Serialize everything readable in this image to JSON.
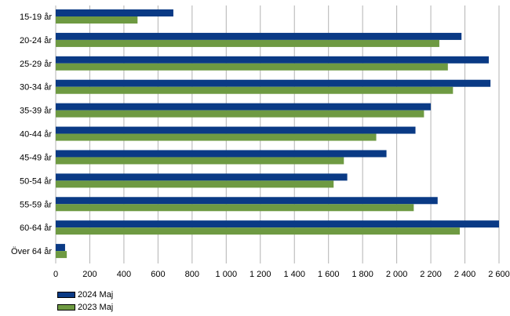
{
  "chart_data": {
    "type": "bar",
    "orientation": "horizontal",
    "categories": [
      "15-19 år",
      "20-24 år",
      "25-29 år",
      "30-34 år",
      "35-39 år",
      "40-44 år",
      "45-49 år",
      "50-54 år",
      "55-59 år",
      "60-64 år",
      "Över 64 år"
    ],
    "series": [
      {
        "name": "2024 Maj",
        "color": "#0a3a85",
        "values": [
          690,
          2380,
          2540,
          2550,
          2200,
          2110,
          1940,
          1710,
          2240,
          2600,
          55
        ]
      },
      {
        "name": "2023 Maj",
        "color": "#6e9a42",
        "values": [
          480,
          2250,
          2300,
          2330,
          2160,
          1880,
          1690,
          1630,
          2100,
          2370,
          65
        ]
      }
    ],
    "xlim": [
      0,
      2600
    ],
    "xticks": [
      0,
      200,
      400,
      600,
      800,
      1000,
      1200,
      1400,
      1600,
      1800,
      2000,
      2200,
      2400,
      2600
    ],
    "xtick_labels": [
      "0",
      "200",
      "400",
      "600",
      "800",
      "1 000",
      "1 200",
      "1 400",
      "1 600",
      "1 800",
      "2 000",
      "2 200",
      "2 400",
      "2 600"
    ],
    "grid": "vertical",
    "legend_position": "bottom-left"
  }
}
